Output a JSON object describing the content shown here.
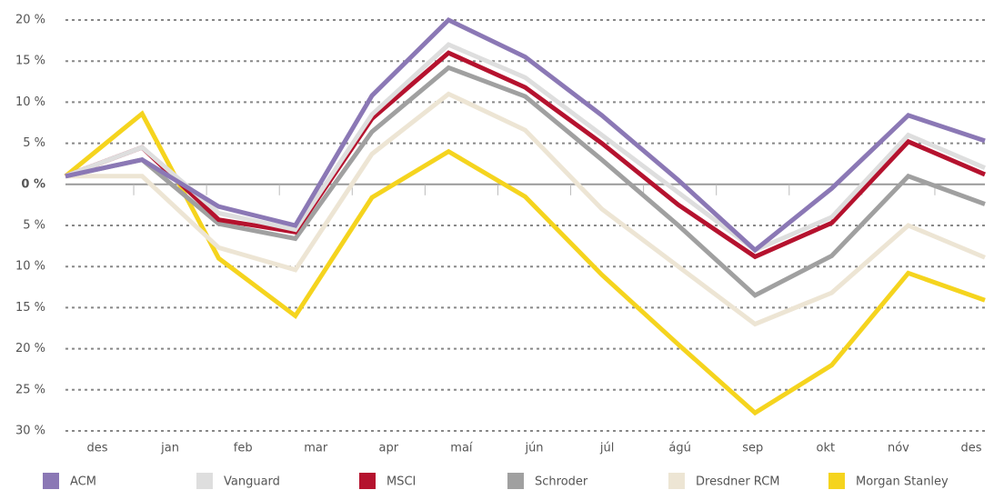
{
  "chart_data": {
    "type": "line",
    "categories": [
      "des",
      "jan",
      "feb",
      "mar",
      "apr",
      "maí",
      "jún",
      "júl",
      "ágú",
      "sep",
      "okt",
      "nóv",
      "des"
    ],
    "series": [
      {
        "name": "ACM",
        "color": "#8b78b5",
        "values": [
          1,
          3,
          -2.7,
          -5,
          10.8,
          20,
          15.5,
          8.4,
          0.5,
          -8,
          -0.5,
          8.4,
          5.3
        ]
      },
      {
        "name": "Vanguard",
        "color": "#dedede",
        "values": [
          1,
          4.5,
          -3.5,
          -5.5,
          8.5,
          17,
          13,
          6,
          -1,
          -8,
          -4,
          6,
          2
        ]
      },
      {
        "name": "MSCI",
        "color": "#b5122e",
        "values": [
          1,
          4.5,
          -4.3,
          -5.8,
          8,
          16,
          11.8,
          5,
          -2.5,
          -8.8,
          -4.7,
          5.2,
          1.2
        ]
      },
      {
        "name": "Schroder",
        "color": "#a0a0a0",
        "values": [
          1,
          3,
          -4.8,
          -6.6,
          6.4,
          14.2,
          10.7,
          3,
          -5,
          -13.5,
          -8.7,
          1,
          -2.4
        ]
      },
      {
        "name": "Dresdner RCM",
        "color": "#ede5d4",
        "values": [
          1,
          1,
          -7.7,
          -10.4,
          3.7,
          11,
          6.6,
          -3,
          -10,
          -17,
          -13.2,
          -5,
          -8.9
        ]
      },
      {
        "name": "Morgan Stanley",
        "color": "#f5d41e",
        "values": [
          1,
          8.6,
          -9,
          -16,
          -1.6,
          4,
          -1.5,
          -11,
          -19.5,
          -27.8,
          -22,
          -10.8,
          -14.1
        ]
      }
    ],
    "ylim": [
      -30,
      20
    ],
    "yticks": [
      {
        "value": 20,
        "label": "20 %"
      },
      {
        "value": 15,
        "label": "15 %"
      },
      {
        "value": 10,
        "label": "10 %"
      },
      {
        "value": 5,
        "label": "5 %"
      },
      {
        "value": 0,
        "label": "0 %"
      },
      {
        "value": -5,
        "label": "5 %"
      },
      {
        "value": -10,
        "label": "10 %"
      },
      {
        "value": -15,
        "label": "15 %"
      },
      {
        "value": -20,
        "label": "20 %"
      },
      {
        "value": -25,
        "label": "25 %"
      },
      {
        "value": -30,
        "label": "30 %"
      }
    ],
    "grid": true,
    "legend": "bottom"
  }
}
